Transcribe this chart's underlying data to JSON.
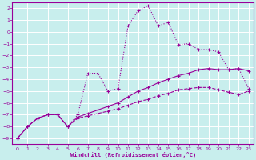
{
  "xlabel": "Windchill (Refroidissement éolien,°C)",
  "background_color": "#c8eeed",
  "grid_color": "#ffffff",
  "line_color": "#990099",
  "xlim": [
    -0.5,
    23.5
  ],
  "ylim": [
    -9.5,
    2.5
  ],
  "xticks": [
    0,
    1,
    2,
    3,
    4,
    5,
    6,
    7,
    8,
    9,
    10,
    11,
    12,
    13,
    14,
    15,
    16,
    17,
    18,
    19,
    20,
    21,
    22,
    23
  ],
  "yticks": [
    2,
    1,
    0,
    -1,
    -2,
    -3,
    -4,
    -5,
    -6,
    -7,
    -8,
    -9
  ],
  "line1_x": [
    0,
    1,
    2,
    3,
    4,
    5,
    6,
    7,
    8,
    9,
    10,
    11,
    12,
    13,
    14,
    15,
    16,
    17,
    18,
    19,
    20,
    21,
    22,
    23
  ],
  "line1_y": [
    -9.0,
    -8.0,
    -7.3,
    -7.0,
    -7.0,
    -8.0,
    -7.0,
    -3.5,
    -3.5,
    -5.0,
    -4.8,
    0.5,
    1.8,
    2.2,
    0.5,
    0.8,
    -1.1,
    -1.0,
    -1.5,
    -1.5,
    -1.7,
    -3.2,
    -3.1,
    -4.8
  ],
  "line2_x": [
    0,
    1,
    2,
    3,
    4,
    5,
    6,
    7,
    8,
    9,
    10,
    11,
    12,
    13,
    14,
    15,
    16,
    17,
    18,
    19,
    20,
    21,
    22,
    23
  ],
  "line2_y": [
    -9.0,
    -8.0,
    -7.3,
    -7.0,
    -7.0,
    -8.0,
    -7.2,
    -6.9,
    -6.6,
    -6.3,
    -6.0,
    -5.5,
    -5.0,
    -4.7,
    -4.3,
    -4.0,
    -3.7,
    -3.5,
    -3.2,
    -3.1,
    -3.2,
    -3.2,
    -3.1,
    -3.3
  ],
  "line3_x": [
    0,
    1,
    2,
    3,
    4,
    5,
    6,
    7,
    8,
    9,
    10,
    11,
    12,
    13,
    14,
    15,
    16,
    17,
    18,
    19,
    20,
    21,
    22,
    23
  ],
  "line3_y": [
    -9.0,
    -8.0,
    -7.3,
    -7.0,
    -7.0,
    -8.0,
    -7.3,
    -7.1,
    -6.9,
    -6.7,
    -6.5,
    -6.2,
    -5.9,
    -5.7,
    -5.4,
    -5.2,
    -4.9,
    -4.8,
    -4.7,
    -4.7,
    -4.9,
    -5.1,
    -5.3,
    -5.0
  ]
}
